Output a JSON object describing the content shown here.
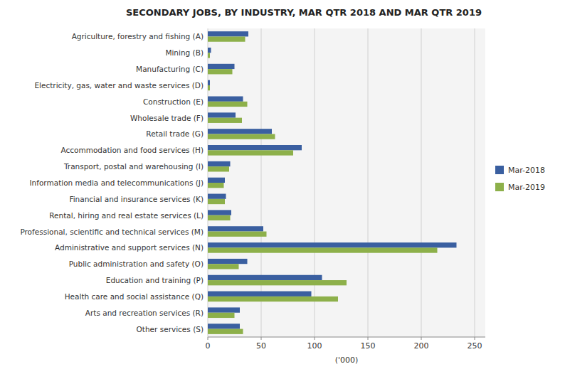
{
  "chart_data": {
    "type": "bar",
    "orientation": "horizontal",
    "title": "SECONDARY JOBS, BY INDUSTRY, MAR QTR 2018 AND MAR QTR 2019",
    "categories": [
      "Agriculture, forestry and fishing (A)",
      "Mining (B)",
      "Manufacturing (C)",
      "Electricity, gas, water and waste services (D)",
      "Construction (E)",
      "Wholesale trade (F)",
      "Retail trade (G)",
      "Accommodation and food services (H)",
      "Transport, postal and warehousing (I)",
      "Information media and telecommunications (J)",
      "Financial and insurance services (K)",
      "Rental, hiring and real estate services (L)",
      "Professional, scientific and technical services (M)",
      "Administrative and support services (N)",
      "Public administration and safety (O)",
      "Education and training (P)",
      "Health care and social assistance (Q)",
      "Arts and recreation services (R)",
      "Other services (S)"
    ],
    "series": [
      {
        "name": "Mar-2018",
        "color": "#3A5FA0",
        "values": [
          38,
          3,
          25,
          2,
          33,
          26,
          60,
          88,
          21,
          16,
          17,
          22,
          52,
          233,
          37,
          107,
          97,
          30,
          30
        ]
      },
      {
        "name": "Mar-2019",
        "color": "#8DB04A",
        "values": [
          35,
          2,
          23,
          2,
          37,
          32,
          63,
          80,
          20,
          15,
          16,
          21,
          55,
          215,
          29,
          130,
          122,
          25,
          33
        ]
      }
    ],
    "xlabel": "('000)",
    "xlim": [
      0,
      260
    ],
    "xticks": [
      0,
      50,
      100,
      150,
      200,
      250
    ],
    "grid": true,
    "legend": "right"
  }
}
